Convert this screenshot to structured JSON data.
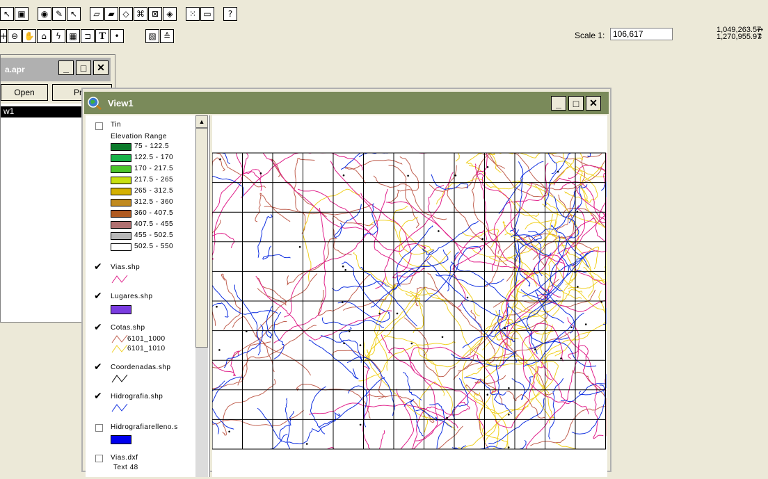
{
  "toolbar_row1": {
    "icons": [
      "select-arrow-icon",
      "vertex-edit-icon",
      "binoculars-icon",
      "query-builder-icon",
      "draw-line-icon",
      "edit-shape-icon",
      "edit-feature-icon",
      "split-icon",
      "zoom-full-icon",
      "zoom-active-icon",
      "zoom-selected-icon",
      "layout-icon",
      "frame-icon",
      "help-icon"
    ]
  },
  "toolbar_row2": {
    "icons": [
      "zoom-in-icon",
      "zoom-out-icon",
      "pan-icon",
      "measure-icon",
      "hotlink-icon",
      "label-icon",
      "area-label-icon",
      "text-tool-icon",
      "pointer-icon",
      "theme-icon",
      "graphic-icon"
    ],
    "text_tool_glyph": "T",
    "pointer_glyph": "•"
  },
  "scale": {
    "label": "Scale 1:",
    "value": "106,617"
  },
  "coords": {
    "x": "1,049,263.57",
    "y": "1,270,955.97",
    "x_arrow": "↔",
    "y_arrow": "↕"
  },
  "project_window": {
    "title": "a.apr",
    "open_label": "Open",
    "print_label": "Pr",
    "selected_item": "w1",
    "min": "_",
    "max": "□",
    "close": "✕"
  },
  "view_window": {
    "title": "View1",
    "min": "_",
    "max": "□",
    "close": "✕",
    "scroll_up": "▲"
  },
  "legend": {
    "tin_name": "Tin",
    "elevation_title": "Elevation Range",
    "ranges": [
      {
        "label": "75 - 122.5",
        "color": "#0b7a2a"
      },
      {
        "label": "122.5 - 170",
        "color": "#18b24a"
      },
      {
        "label": "170 - 217.5",
        "color": "#4cc62c"
      },
      {
        "label": "217.5 - 265",
        "color": "#c8e010"
      },
      {
        "label": "265 - 312.5",
        "color": "#d4b000"
      },
      {
        "label": "312.5 - 360",
        "color": "#c08a20"
      },
      {
        "label": "360 - 407.5",
        "color": "#b05a20"
      },
      {
        "label": "407.5 - 455",
        "color": "#b07070"
      },
      {
        "label": "455 - 502.5",
        "color": "#b8b8b8"
      },
      {
        "label": "502.5 - 550",
        "color": "#ffffff"
      }
    ],
    "vias_shp": {
      "name": "Vias.shp",
      "color": "#e0208a"
    },
    "lugares_shp": {
      "name": "Lugares.shp",
      "color": "#7a3ce0"
    },
    "cotas_shp": {
      "name": "Cotas.shp",
      "cls1": "6101_1000",
      "cls2": "6101_1010",
      "color1": "#c06050",
      "color2": "#f0d020"
    },
    "coordenadas_shp": {
      "name": "Coordenadas.shp",
      "color": "#000000"
    },
    "hidrografia_shp": {
      "name": "Hidrografia.shp",
      "color": "#1030e0"
    },
    "hidrografia_relleno": {
      "name": "Hidrografiarelleno.s",
      "color": "#0000ee"
    },
    "vias_dxf": {
      "name": "Vias.dxf",
      "sub": "Text 48"
    }
  },
  "map_colors": {
    "roads": "#e0208a",
    "contour1": "#c06050",
    "contour2": "#f0d020",
    "rivers": "#1030e0",
    "grid": "#000000"
  }
}
